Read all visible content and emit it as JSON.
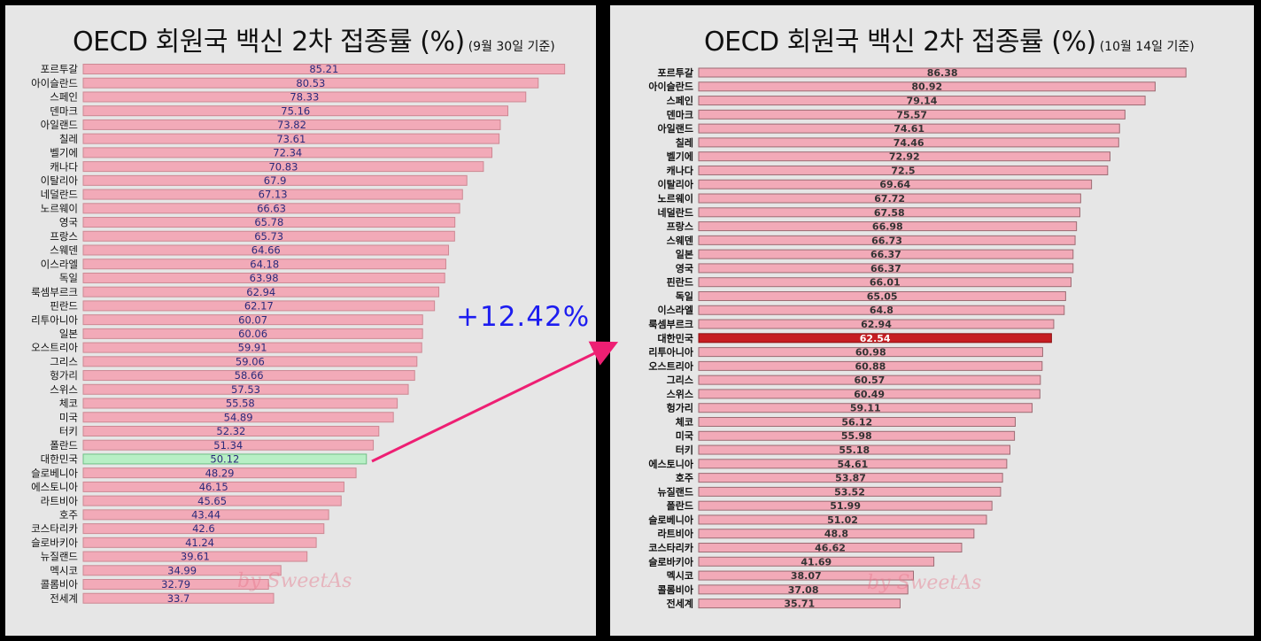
{
  "annotation": "+12.42%",
  "watermark": "by SweetAs",
  "colors": {
    "bar_default": "#f2aab8",
    "bar_highlight_left": "#b7efc5",
    "bar_highlight_right": "#c61d22",
    "value_text_left": "#2a2a7a",
    "value_text_right": "#333333",
    "arrow": "#ee1f73",
    "annotation": "#1d1df0"
  },
  "chart_data": [
    {
      "type": "bar",
      "orientation": "horizontal",
      "title": "OECD 회원국 백신 2차 접종률 (%)",
      "subtitle": "(9월 30일 기준)",
      "highlight": "대한민국",
      "categories": [
        "포르투갈",
        "아이슬란드",
        "스페인",
        "덴마크",
        "아일랜드",
        "칠레",
        "벨기에",
        "캐나다",
        "이탈리아",
        "네덜란드",
        "노르웨이",
        "영국",
        "프랑스",
        "스웨덴",
        "이스라엘",
        "독일",
        "룩셈부르크",
        "핀란드",
        "리투아니아",
        "일본",
        "오스트리아",
        "그리스",
        "헝가리",
        "스위스",
        "체코",
        "미국",
        "터키",
        "폴란드",
        "대한민국",
        "슬로베니아",
        "에스토니아",
        "라트비아",
        "호주",
        "코스타리카",
        "슬로바키아",
        "뉴질랜드",
        "멕시코",
        "콜롬비아",
        "전세계"
      ],
      "values": [
        85.21,
        80.53,
        78.33,
        75.16,
        73.82,
        73.61,
        72.34,
        70.83,
        67.9,
        67.13,
        66.63,
        65.78,
        65.73,
        64.66,
        64.18,
        63.98,
        62.94,
        62.17,
        60.07,
        60.06,
        59.91,
        59.06,
        58.66,
        57.53,
        55.58,
        54.89,
        52.32,
        51.34,
        50.12,
        48.29,
        46.15,
        45.65,
        43.44,
        42.6,
        41.24,
        39.61,
        34.99,
        32.79,
        33.7
      ],
      "value_labels": [
        "85.21",
        "80.53",
        "78.33",
        "75.16",
        "73.82",
        "73.61",
        "72.34",
        "70.83",
        "67.9",
        "67.13",
        "66.63",
        "65.78",
        "65.73",
        "64.66",
        "64.18",
        "63.98",
        "62.94",
        "62.17",
        "60.07",
        "60.06",
        "59.91",
        "59.06",
        "58.66",
        "57.53",
        "55.58",
        "54.89",
        "52.32",
        "51.34",
        "50.12",
        "48.29",
        "46.15",
        "45.65",
        "43.44",
        "42.6",
        "41.24",
        "39.61",
        "34.99",
        "32.79",
        "33.7"
      ]
    },
    {
      "type": "bar",
      "orientation": "horizontal",
      "title": "OECD 회원국 백신 2차 접종률 (%)",
      "subtitle": "(10월 14일 기준)",
      "highlight": "대한민국",
      "categories": [
        "포르투갈",
        "아이슬란드",
        "스페인",
        "덴마크",
        "아일랜드",
        "칠레",
        "벨기에",
        "캐나다",
        "이탈리아",
        "노르웨이",
        "네덜란드",
        "프랑스",
        "스웨덴",
        "일본",
        "영국",
        "핀란드",
        "독일",
        "이스라엘",
        "룩셈부르크",
        "대한민국",
        "리투아니아",
        "오스트리아",
        "그리스",
        "스위스",
        "헝가리",
        "체코",
        "미국",
        "터키",
        "에스토니아",
        "호주",
        "뉴질랜드",
        "폴란드",
        "슬로베니아",
        "라트비아",
        "코스타리카",
        "슬로바키아",
        "멕시코",
        "콜롬비아",
        "전세계"
      ],
      "values": [
        86.38,
        80.92,
        79.14,
        75.57,
        74.61,
        74.46,
        72.92,
        72.5,
        69.64,
        67.72,
        67.58,
        66.98,
        66.73,
        66.37,
        66.37,
        66.01,
        65.05,
        64.8,
        62.94,
        62.54,
        60.98,
        60.88,
        60.57,
        60.49,
        59.11,
        56.12,
        55.98,
        55.18,
        54.61,
        53.87,
        53.52,
        51.99,
        51.02,
        48.8,
        46.62,
        41.69,
        38.07,
        37.08,
        35.71
      ],
      "value_labels": [
        "86.38",
        "80.92",
        "79.14",
        "75.57",
        "74.61",
        "74.46",
        "72.92",
        "72.5",
        "69.64",
        "67.72",
        "67.58",
        "66.98",
        "66.73",
        "66.37",
        "66.37",
        "66.01",
        "65.05",
        "64.8",
        "62.94",
        "62.54",
        "60.98",
        "60.88",
        "60.57",
        "60.49",
        "59.11",
        "56.12",
        "55.98",
        "55.18",
        "54.61",
        "53.87",
        "53.52",
        "51.99",
        "51.02",
        "48.8",
        "46.62",
        "41.69",
        "38.07",
        "37.08",
        "35.71"
      ]
    }
  ]
}
